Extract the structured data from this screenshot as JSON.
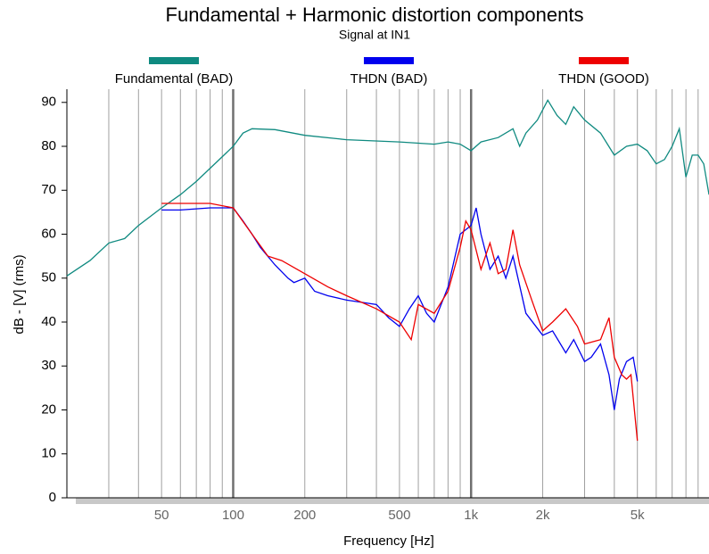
{
  "chart_data": {
    "type": "line",
    "title": "Fundamental + Harmonic distortion components",
    "subtitle": "Signal at IN1",
    "x_label": "Frequency [Hz]",
    "y_label": "dB - [V]  (rms)",
    "log_x": true,
    "xlim": [
      20,
      10000
    ],
    "ylim": [
      0,
      93
    ],
    "xticks": [
      50,
      100,
      200,
      500,
      {
        "value": 1000,
        "label": "1k"
      },
      {
        "value": 2000,
        "label": "2k"
      },
      {
        "value": 5000,
        "label": "5k"
      }
    ],
    "yticks": [
      0,
      10,
      20,
      30,
      40,
      50,
      60,
      70,
      80,
      90
    ],
    "x_grid_minor": [
      30,
      40,
      50,
      60,
      70,
      80,
      90,
      200,
      300,
      400,
      500,
      600,
      700,
      800,
      900,
      2000,
      3000,
      4000,
      5000,
      6000,
      7000,
      8000,
      9000
    ],
    "x_grid_major": [
      100,
      1000
    ],
    "series": [
      {
        "name": "Fundamental (BAD)",
        "color": "#0f8a80",
        "x": [
          20,
          25,
          30,
          35,
          40,
          50,
          60,
          70,
          80,
          100,
          110,
          120,
          150,
          200,
          300,
          500,
          700,
          800,
          900,
          1000,
          1100,
          1300,
          1500,
          1600,
          1700,
          1900,
          2100,
          2300,
          2500,
          2700,
          3000,
          3500,
          4000,
          4500,
          5000,
          5500,
          6000,
          6500,
          7000,
          7500,
          8000,
          8500,
          9000,
          9500,
          10000
        ],
        "values": [
          50.5,
          54,
          58,
          59,
          62,
          66,
          69,
          72,
          75,
          80,
          83,
          84,
          83.8,
          82.5,
          81.5,
          81,
          80.5,
          81,
          80.5,
          79,
          81,
          82,
          84,
          80,
          83,
          86,
          90.5,
          87,
          85,
          89,
          86,
          83,
          78,
          80,
          80.5,
          79,
          76,
          77,
          80,
          84,
          73,
          78,
          78,
          76,
          69
        ]
      },
      {
        "name": "THDN (BAD)",
        "color": "#0000ee",
        "x": [
          50,
          60,
          80,
          100,
          110,
          120,
          130,
          150,
          170,
          180,
          200,
          220,
          250,
          300,
          400,
          450,
          500,
          550,
          600,
          650,
          700,
          800,
          900,
          1000,
          1050,
          1100,
          1200,
          1300,
          1400,
          1500,
          1700,
          2000,
          2200,
          2500,
          2700,
          3000,
          3200,
          3500,
          3800,
          4000,
          4200,
          4500,
          4800,
          5000
        ],
        "values": [
          65.5,
          65.5,
          66,
          66,
          63,
          60,
          57,
          53,
          50,
          49,
          50,
          47,
          46,
          45,
          44,
          41,
          39,
          43,
          46,
          42,
          40,
          48,
          60,
          62,
          66,
          60,
          52,
          55,
          50,
          55,
          42,
          37,
          38,
          33,
          36,
          31,
          32,
          35,
          28,
          20,
          27,
          31,
          32,
          26.5
        ]
      },
      {
        "name": "THDN (GOOD)",
        "color": "#ee0000",
        "x": [
          50,
          60,
          80,
          100,
          120,
          140,
          160,
          200,
          250,
          300,
          400,
          500,
          560,
          600,
          700,
          800,
          900,
          950,
          1000,
          1100,
          1200,
          1300,
          1400,
          1500,
          1600,
          1800,
          2000,
          2200,
          2500,
          2800,
          3000,
          3500,
          3800,
          4000,
          4300,
          4500,
          4700,
          5000
        ],
        "values": [
          67,
          67,
          67,
          66,
          60,
          55,
          54,
          51,
          48,
          46,
          43,
          40,
          36,
          44,
          42,
          47,
          57,
          63,
          61,
          52,
          58,
          51,
          52,
          61,
          53,
          45,
          38,
          40,
          43,
          39,
          35,
          36,
          41,
          32,
          28,
          27,
          28,
          13
        ]
      }
    ]
  }
}
